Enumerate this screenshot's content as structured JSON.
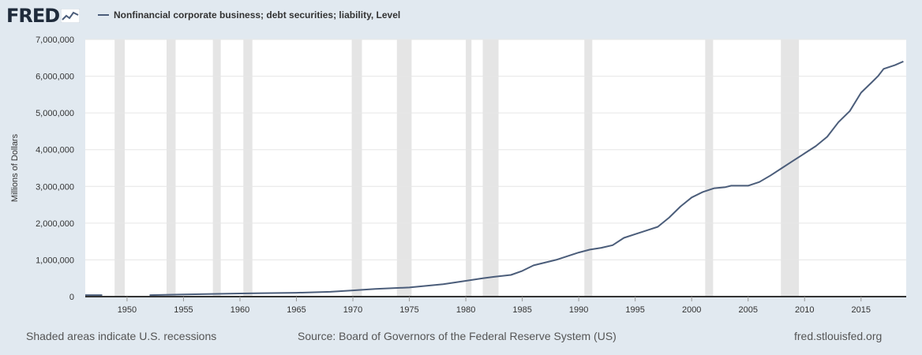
{
  "header": {
    "logo_text": "FRED",
    "series_title": "Nonfinancial corporate business; debt securities; liability, Level"
  },
  "footer": {
    "recessions_note": "Shaded areas indicate U.S. recessions",
    "source": "Source: Board of Governors of the Federal Reserve System (US)",
    "site": "fred.stlouisfed.org"
  },
  "colors": {
    "page_background": "#e1e9f0",
    "plot_background": "#ffffff",
    "line": "#4b5d7a",
    "recession_shade": "#e5e5e5",
    "grid": "#e6e6e6"
  },
  "chart_data": {
    "type": "line",
    "title": "Nonfinancial corporate business; debt securities; liability, Level",
    "xlabel": "",
    "ylabel": "Millions of Dollars",
    "xlim": [
      1946.3,
      2019.0
    ],
    "ylim": [
      0,
      7000000
    ],
    "x_ticks": [
      1950,
      1955,
      1960,
      1965,
      1970,
      1975,
      1980,
      1985,
      1990,
      1995,
      2000,
      2005,
      2010,
      2015
    ],
    "x_tick_labels": [
      "1950",
      "1955",
      "1960",
      "1965",
      "1970",
      "1975",
      "1980",
      "1985",
      "1990",
      "1995",
      "2000",
      "2005",
      "2010",
      "2015"
    ],
    "y_ticks": [
      0,
      1000000,
      2000000,
      3000000,
      4000000,
      5000000,
      6000000,
      7000000
    ],
    "y_tick_labels": [
      "0",
      "1,000,000",
      "2,000,000",
      "3,000,000",
      "4,000,000",
      "5,000,000",
      "6,000,000",
      "7,000,000"
    ],
    "grid": true,
    "legend": "top-left",
    "recessions": [
      [
        1948.9,
        1949.8
      ],
      [
        1953.5,
        1954.3
      ],
      [
        1957.6,
        1958.3
      ],
      [
        1960.3,
        1961.1
      ],
      [
        1969.9,
        1970.8
      ],
      [
        1973.9,
        1975.2
      ],
      [
        1980.0,
        1980.5
      ],
      [
        1981.5,
        1982.9
      ],
      [
        1990.5,
        1991.2
      ],
      [
        2001.2,
        2001.9
      ],
      [
        2007.9,
        2009.5
      ]
    ],
    "series": [
      {
        "name": "Nonfinancial corporate business; debt securities; liability, Level",
        "segments": [
          {
            "x": [
              1946.3,
              1946.5,
              1946.8,
              1947.0,
              1947.3,
              1947.5,
              1947.8
            ],
            "y": [
              40000,
              40000,
              40000,
              40000,
              40000,
              40000,
              40000
            ]
          },
          {
            "x": [
              1952.0,
              1955,
              1958,
              1960,
              1962,
              1965,
              1968,
              1970,
              1972,
              1975,
              1978,
              1980,
              1981.5,
              1982.5,
              1984,
              1985,
              1986,
              1988,
              1990,
              1991,
              1992,
              1993,
              1994,
              1995,
              1996,
              1997,
              1998,
              1999,
              2000,
              2001,
              2002,
              2003,
              2003.5,
              2004,
              2005,
              2006,
              2007,
              2008,
              2009,
              2010,
              2011,
              2012,
              2013,
              2014,
              2015,
              2016,
              2016.5,
              2017,
              2018,
              2018.75
            ],
            "y": [
              40000,
              60000,
              75000,
              85000,
              95000,
              105000,
              130000,
              170000,
              210000,
              250000,
              340000,
              430000,
              500000,
              540000,
              590000,
              700000,
              850000,
              1000000,
              1200000,
              1280000,
              1330000,
              1400000,
              1600000,
              1700000,
              1800000,
              1900000,
              2150000,
              2450000,
              2700000,
              2850000,
              2950000,
              2980000,
              3020000,
              3020000,
              3020000,
              3120000,
              3300000,
              3500000,
              3700000,
              3900000,
              4100000,
              4350000,
              4750000,
              5050000,
              5550000,
              5850000,
              6000000,
              6200000,
              6300000,
              6400000
            ]
          }
        ]
      }
    ]
  }
}
